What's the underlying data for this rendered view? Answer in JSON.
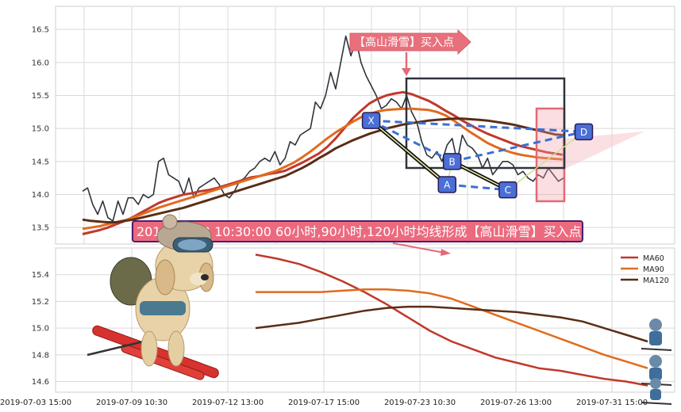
{
  "colors": {
    "price": "#2f343b",
    "ma60": "#c0392b",
    "ma90": "#e06b1d",
    "ma120": "#5a2d16",
    "pattern_line": "#3b6fd4",
    "point_fill": "#4a6fd6",
    "callout_fill": "#e8707c",
    "banner_fill": "#ec6a7e",
    "banner_border": "#4b1f6f"
  },
  "annotations": {
    "callout": "【高山滑雪】买入点",
    "banner": "2019-07-23 10:30:00 60小时,90小时,120小时均线形成【高山滑雪】买入点",
    "points": [
      "X",
      "A",
      "B",
      "C",
      "D"
    ]
  },
  "chart_data": [
    {
      "type": "line",
      "panel": "top",
      "ylim": [
        13.25,
        16.85
      ],
      "yticks": [
        13.5,
        14.0,
        14.5,
        15.0,
        15.5,
        16.0,
        16.5
      ],
      "x_range": [
        0,
        99
      ],
      "grid": true,
      "series": [
        {
          "key": "price",
          "values": [
            14.05,
            14.1,
            13.85,
            13.7,
            13.9,
            13.65,
            13.6,
            13.9,
            13.7,
            13.95,
            13.95,
            13.85,
            14.0,
            13.95,
            14.0,
            14.5,
            14.55,
            14.3,
            14.25,
            14.2,
            14.0,
            14.25,
            13.95,
            14.1,
            14.15,
            14.2,
            14.25,
            14.15,
            14.0,
            13.95,
            14.05,
            14.2,
            14.25,
            14.35,
            14.4,
            14.5,
            14.55,
            14.5,
            14.65,
            14.45,
            14.55,
            14.8,
            14.75,
            14.9,
            14.95,
            15.0,
            15.4,
            15.3,
            15.5,
            15.85,
            15.6,
            16.0,
            16.4,
            16.1,
            16.35,
            16.0,
            15.8,
            15.65,
            15.5,
            15.3,
            15.35,
            15.45,
            15.4,
            15.3,
            15.5,
            15.25,
            15.1,
            14.8,
            14.6,
            14.55,
            14.65,
            14.5,
            14.75,
            14.85,
            14.5,
            14.9,
            14.75,
            14.7,
            14.6,
            14.4,
            14.55,
            14.3,
            14.4,
            14.5,
            14.5,
            14.45,
            14.3,
            14.35,
            14.25,
            14.2,
            14.3,
            14.25,
            14.4,
            14.3,
            14.2,
            14.25
          ]
        },
        {
          "key": "ma60",
          "values": [
            13.4,
            13.43,
            13.46,
            13.5,
            13.55,
            13.6,
            13.66,
            13.73,
            13.8,
            13.87,
            13.92,
            13.96,
            14.0,
            14.02,
            14.05,
            14.07,
            14.1,
            14.14,
            14.18,
            14.22,
            14.26,
            14.28,
            14.31,
            14.33,
            14.36,
            14.42,
            14.48,
            14.55,
            14.62,
            14.72,
            14.85,
            15.0,
            15.15,
            15.27,
            15.38,
            15.45,
            15.5,
            15.53,
            15.55,
            15.52,
            15.47,
            15.42,
            15.35,
            15.27,
            15.2,
            15.12,
            15.05,
            14.98,
            14.92,
            14.87,
            14.82,
            14.77,
            14.73,
            14.7,
            14.67,
            14.64,
            14.62,
            14.6
          ]
        },
        {
          "key": "ma90",
          "values": [
            13.48,
            13.5,
            13.52,
            13.55,
            13.58,
            13.61,
            13.65,
            13.7,
            13.75,
            13.8,
            13.84,
            13.88,
            13.92,
            13.96,
            14.0,
            14.04,
            14.08,
            14.12,
            14.16,
            14.2,
            14.24,
            14.28,
            14.32,
            14.36,
            14.42,
            14.48,
            14.56,
            14.65,
            14.75,
            14.85,
            14.94,
            15.02,
            15.1,
            15.17,
            15.22,
            15.26,
            15.28,
            15.29,
            15.3,
            15.3,
            15.29,
            15.28,
            15.25,
            15.2,
            15.12,
            15.03,
            14.94,
            14.86,
            14.78,
            14.72,
            14.67,
            14.63,
            14.6,
            14.58,
            14.56,
            14.55,
            14.54,
            14.53
          ]
        },
        {
          "key": "ma120",
          "values": [
            13.62,
            13.6,
            13.59,
            13.58,
            13.58,
            13.6,
            13.62,
            13.65,
            13.68,
            13.71,
            13.74,
            13.77,
            13.8,
            13.84,
            13.88,
            13.92,
            13.96,
            14.0,
            14.04,
            14.08,
            14.12,
            14.16,
            14.2,
            14.24,
            14.28,
            14.34,
            14.4,
            14.47,
            14.55,
            14.62,
            14.7,
            14.76,
            14.82,
            14.87,
            14.92,
            14.96,
            15.0,
            15.03,
            15.06,
            15.08,
            15.1,
            15.12,
            15.13,
            15.14,
            15.15,
            15.15,
            15.14,
            15.13,
            15.12,
            15.1,
            15.08,
            15.06,
            15.03,
            15.0,
            14.97,
            14.94,
            14.91,
            14.9
          ]
        }
      ],
      "pattern_points": [
        {
          "label": "X",
          "x": 57,
          "y": 15.12
        },
        {
          "label": "A",
          "x": 72,
          "y": 14.15
        },
        {
          "label": "B",
          "x": 73,
          "y": 14.5
        },
        {
          "label": "C",
          "x": 84,
          "y": 14.07
        },
        {
          "label": "D",
          "x": 99,
          "y": 14.95
        }
      ]
    },
    {
      "type": "line",
      "panel": "bottom",
      "ylim": [
        14.52,
        15.6
      ],
      "yticks": [
        14.6,
        14.8,
        15.0,
        15.2,
        15.4
      ],
      "x_tick_labels": [
        "2019-07-03 15:00",
        "2019-07-09 10:30",
        "2019-07-12 13:00",
        "2019-07-17 15:00",
        "2019-07-23 10:30",
        "2019-07-26 13:00",
        "2019-07-31 15:00"
      ],
      "grid": true,
      "legend_position": "top-right",
      "series": [
        {
          "name": "MA60",
          "key": "ma60",
          "values": [
            15.55,
            15.52,
            15.48,
            15.42,
            15.35,
            15.27,
            15.18,
            15.08,
            14.98,
            14.9,
            14.84,
            14.78,
            14.74,
            14.7,
            14.68,
            14.65,
            14.62,
            14.6,
            14.57
          ]
        },
        {
          "name": "MA90",
          "key": "ma90",
          "values": [
            15.27,
            15.27,
            15.27,
            15.27,
            15.28,
            15.29,
            15.29,
            15.28,
            15.26,
            15.22,
            15.16,
            15.1,
            15.04,
            14.98,
            14.92,
            14.86,
            14.8,
            14.75,
            14.7
          ]
        },
        {
          "name": "MA120",
          "key": "ma120",
          "values": [
            15.0,
            15.02,
            15.04,
            15.07,
            15.1,
            15.13,
            15.15,
            15.16,
            15.16,
            15.15,
            15.14,
            15.13,
            15.12,
            15.1,
            15.08,
            15.05,
            15.0,
            14.95,
            14.9
          ]
        }
      ]
    }
  ]
}
